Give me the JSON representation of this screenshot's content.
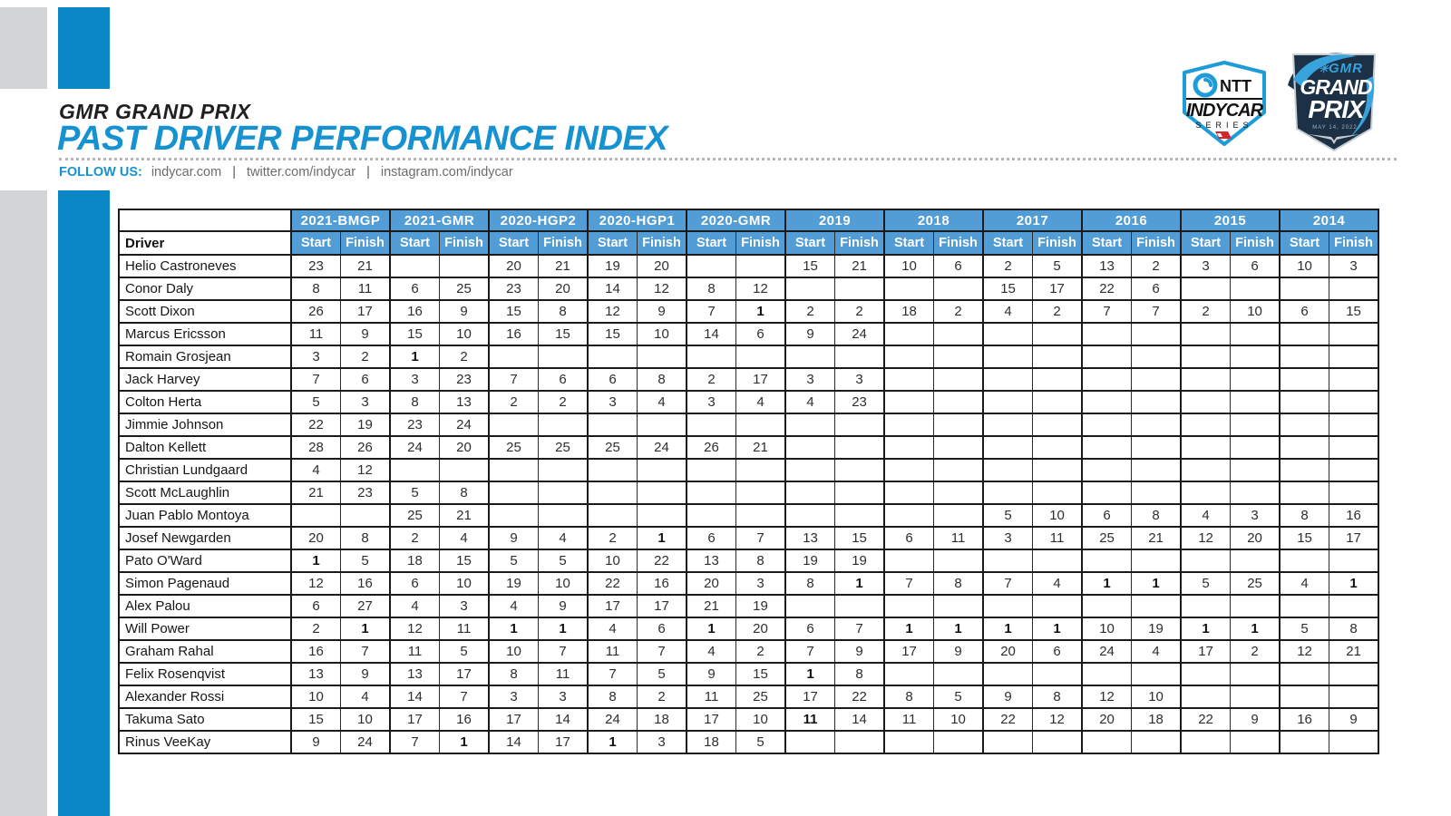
{
  "header": {
    "event_name": "GMR GRAND PRIX",
    "title": "PAST DRIVER PERFORMANCE INDEX",
    "follow": {
      "label": "FOLLOW US:",
      "links": [
        "indycar.com",
        "twitter.com/indycar",
        "instagram.com/indycar"
      ],
      "separator": "|"
    }
  },
  "logos": {
    "indycar": {
      "ntt": "NTT",
      "wordmark": "INDYCAR",
      "series": "SERIES"
    },
    "gmr": {
      "brand": "GMR",
      "line1": "GRAND",
      "line2": "PRIX",
      "date": "MAY 14, 2022"
    }
  },
  "table": {
    "driver_col_header": "Driver",
    "start_label": "Start",
    "finish_label": "Finish",
    "events": [
      "2021-BMGP",
      "2021-GMR",
      "2020-HGP2",
      "2020-HGP1",
      "2020-GMR",
      "2019",
      "2018",
      "2017",
      "2016",
      "2015",
      "2014"
    ],
    "rows": [
      {
        "driver": "Helio Castroneves",
        "cells": [
          "23",
          "21",
          "",
          "",
          "20",
          "21",
          "19",
          "20",
          "",
          "",
          "15",
          "21",
          "10",
          "6",
          "2",
          "5",
          "13",
          "2",
          "3",
          "6",
          "10",
          "3"
        ],
        "bold": []
      },
      {
        "driver": "Conor Daly",
        "cells": [
          "8",
          "11",
          "6",
          "25",
          "23",
          "20",
          "14",
          "12",
          "8",
          "12",
          "",
          "",
          "",
          "",
          "15",
          "17",
          "22",
          "6",
          "",
          "",
          "",
          ""
        ],
        "bold": []
      },
      {
        "driver": "Scott Dixon",
        "cells": [
          "26",
          "17",
          "16",
          "9",
          "15",
          "8",
          "12",
          "9",
          "7",
          "1",
          "2",
          "2",
          "18",
          "2",
          "4",
          "2",
          "7",
          "7",
          "2",
          "10",
          "6",
          "15"
        ],
        "bold": [
          9
        ]
      },
      {
        "driver": "Marcus Ericsson",
        "cells": [
          "11",
          "9",
          "15",
          "10",
          "16",
          "15",
          "15",
          "10",
          "14",
          "6",
          "9",
          "24",
          "",
          "",
          "",
          "",
          "",
          "",
          "",
          "",
          "",
          ""
        ],
        "bold": []
      },
      {
        "driver": "Romain Grosjean",
        "cells": [
          "3",
          "2",
          "1",
          "2",
          "",
          "",
          "",
          "",
          "",
          "",
          "",
          "",
          "",
          "",
          "",
          "",
          "",
          "",
          "",
          "",
          "",
          ""
        ],
        "bold": [
          2
        ]
      },
      {
        "driver": "Jack Harvey",
        "cells": [
          "7",
          "6",
          "3",
          "23",
          "7",
          "6",
          "6",
          "8",
          "2",
          "17",
          "3",
          "3",
          "",
          "",
          "",
          "",
          "",
          "",
          "",
          "",
          "",
          ""
        ],
        "bold": []
      },
      {
        "driver": "Colton Herta",
        "cells": [
          "5",
          "3",
          "8",
          "13",
          "2",
          "2",
          "3",
          "4",
          "3",
          "4",
          "4",
          "23",
          "",
          "",
          "",
          "",
          "",
          "",
          "",
          "",
          "",
          ""
        ],
        "bold": []
      },
      {
        "driver": "Jimmie Johnson",
        "cells": [
          "22",
          "19",
          "23",
          "24",
          "",
          "",
          "",
          "",
          "",
          "",
          "",
          "",
          "",
          "",
          "",
          "",
          "",
          "",
          "",
          "",
          "",
          ""
        ],
        "bold": []
      },
      {
        "driver": "Dalton Kellett",
        "cells": [
          "28",
          "26",
          "24",
          "20",
          "25",
          "25",
          "25",
          "24",
          "26",
          "21",
          "",
          "",
          "",
          "",
          "",
          "",
          "",
          "",
          "",
          "",
          "",
          ""
        ],
        "bold": []
      },
      {
        "driver": "Christian Lundgaard",
        "cells": [
          "4",
          "12",
          "",
          "",
          "",
          "",
          "",
          "",
          "",
          "",
          "",
          "",
          "",
          "",
          "",
          "",
          "",
          "",
          "",
          "",
          "",
          ""
        ],
        "bold": []
      },
      {
        "driver": "Scott McLaughlin",
        "cells": [
          "21",
          "23",
          "5",
          "8",
          "",
          "",
          "",
          "",
          "",
          "",
          "",
          "",
          "",
          "",
          "",
          "",
          "",
          "",
          "",
          "",
          "",
          ""
        ],
        "bold": []
      },
      {
        "driver": "Juan Pablo Montoya",
        "cells": [
          "",
          "",
          "25",
          "21",
          "",
          "",
          "",
          "",
          "",
          "",
          "",
          "",
          "",
          "",
          "5",
          "10",
          "6",
          "8",
          "4",
          "3",
          "8",
          "16"
        ],
        "bold": []
      },
      {
        "driver": "Josef Newgarden",
        "cells": [
          "20",
          "8",
          "2",
          "4",
          "9",
          "4",
          "2",
          "1",
          "6",
          "7",
          "13",
          "15",
          "6",
          "11",
          "3",
          "11",
          "25",
          "21",
          "12",
          "20",
          "15",
          "17"
        ],
        "bold": [
          7
        ]
      },
      {
        "driver": "Pato O'Ward",
        "cells": [
          "1",
          "5",
          "18",
          "15",
          "5",
          "5",
          "10",
          "22",
          "13",
          "8",
          "19",
          "19",
          "",
          "",
          "",
          "",
          "",
          "",
          "",
          "",
          "",
          ""
        ],
        "bold": [
          0
        ]
      },
      {
        "driver": "Simon Pagenaud",
        "cells": [
          "12",
          "16",
          "6",
          "10",
          "19",
          "10",
          "22",
          "16",
          "20",
          "3",
          "8",
          "1",
          "7",
          "8",
          "7",
          "4",
          "1",
          "1",
          "5",
          "25",
          "4",
          "1"
        ],
        "bold": [
          11,
          16,
          17,
          21
        ]
      },
      {
        "driver": "Alex Palou",
        "cells": [
          "6",
          "27",
          "4",
          "3",
          "4",
          "9",
          "17",
          "17",
          "21",
          "19",
          "",
          "",
          "",
          "",
          "",
          "",
          "",
          "",
          "",
          "",
          "",
          ""
        ],
        "bold": []
      },
      {
        "driver": "Will Power",
        "cells": [
          "2",
          "1",
          "12",
          "11",
          "1",
          "1",
          "4",
          "6",
          "1",
          "20",
          "6",
          "7",
          "1",
          "1",
          "1",
          "1",
          "10",
          "19",
          "1",
          "1",
          "5",
          "8"
        ],
        "bold": [
          1,
          4,
          5,
          8,
          12,
          13,
          14,
          15,
          18,
          19
        ]
      },
      {
        "driver": "Graham Rahal",
        "cells": [
          "16",
          "7",
          "11",
          "5",
          "10",
          "7",
          "11",
          "7",
          "4",
          "2",
          "7",
          "9",
          "17",
          "9",
          "20",
          "6",
          "24",
          "4",
          "17",
          "2",
          "12",
          "21"
        ],
        "bold": []
      },
      {
        "driver": "Felix Rosenqvist",
        "cells": [
          "13",
          "9",
          "13",
          "17",
          "8",
          "11",
          "7",
          "5",
          "9",
          "15",
          "1",
          "8",
          "",
          "",
          "",
          "",
          "",
          "",
          "",
          "",
          "",
          ""
        ],
        "bold": [
          10
        ]
      },
      {
        "driver": "Alexander Rossi",
        "cells": [
          "10",
          "4",
          "14",
          "7",
          "3",
          "3",
          "8",
          "2",
          "11",
          "25",
          "17",
          "22",
          "8",
          "5",
          "9",
          "8",
          "12",
          "10",
          "",
          "",
          "",
          ""
        ],
        "bold": []
      },
      {
        "driver": "Takuma Sato",
        "cells": [
          "15",
          "10",
          "17",
          "16",
          "17",
          "14",
          "24",
          "18",
          "17",
          "10",
          "11",
          "14",
          "11",
          "10",
          "22",
          "12",
          "20",
          "18",
          "22",
          "9",
          "16",
          "9"
        ],
        "bold": [
          10
        ]
      },
      {
        "driver": "Rinus VeeKay",
        "cells": [
          "9",
          "24",
          "7",
          "1",
          "14",
          "17",
          "1",
          "3",
          "18",
          "5",
          "",
          "",
          "",
          "",
          "",
          "",
          "",
          "",
          "",
          "",
          "",
          ""
        ],
        "bold": [
          3,
          6
        ]
      }
    ]
  },
  "colors": {
    "accent_blue": "#1792d1",
    "table_header_blue": "#539dd6",
    "bar_blue": "#0a86c4",
    "stripe_gray": "#d2d4d6",
    "link_gray": "#6b6c6e",
    "gmr_navy": "#1c3046",
    "gmr_light_blue": "#37a2db",
    "indycar_red": "#d22630"
  }
}
